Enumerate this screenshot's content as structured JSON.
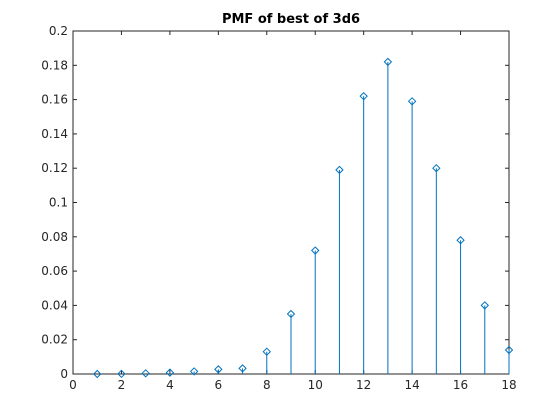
{
  "chart_data": {
    "type": "stem",
    "title": "PMF of best of 3d6",
    "xlabel": "",
    "ylabel": "",
    "xlim": [
      0,
      18
    ],
    "ylim": [
      0,
      0.2
    ],
    "xticks": [
      0,
      2,
      4,
      6,
      8,
      10,
      12,
      14,
      16,
      18
    ],
    "yticks": [
      0,
      0.02,
      0.04,
      0.06,
      0.08,
      0.1,
      0.12,
      0.14,
      0.16,
      0.18,
      0.2
    ],
    "x": [
      1,
      2,
      3,
      4,
      5,
      6,
      7,
      8,
      9,
      10,
      11,
      12,
      13,
      14,
      15,
      16,
      17,
      18
    ],
    "values": [
      0.0,
      0.0001,
      0.0004,
      0.0008,
      0.0015,
      0.0027,
      0.0033,
      0.013,
      0.035,
      0.072,
      0.119,
      0.162,
      0.182,
      0.159,
      0.12,
      0.078,
      0.04,
      0.014
    ],
    "grid": false,
    "series_color": "#0072BD",
    "axis_color": "#262626"
  }
}
